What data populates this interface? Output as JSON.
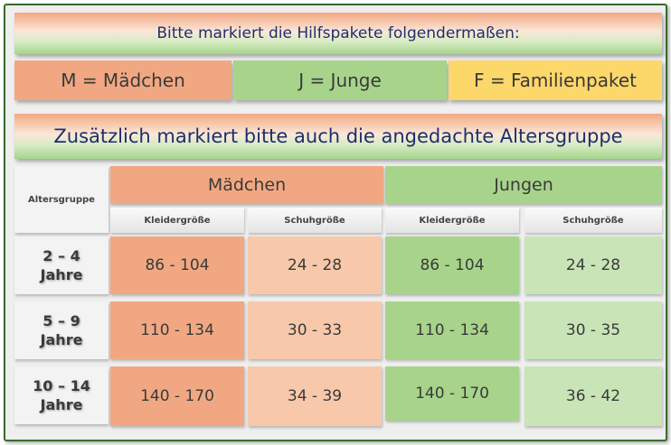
{
  "header": {
    "instruction": "Bitte markiert die Hilfspakete folgendermaßen:",
    "secondary": "Zusätzlich markiert bitte auch die angedachte Altersgruppe"
  },
  "legend": {
    "m": "M = Mädchen",
    "j": "J = Junge",
    "f": "F = Familienpaket"
  },
  "colors": {
    "girls": "#f1a882",
    "boys": "#a7d48a",
    "family": "#fcd769"
  },
  "table": {
    "age_header": "Altersgruppe",
    "groups": [
      "Mädchen",
      "Jungen"
    ],
    "subheaders": [
      "Kleidergröße",
      "Schuhgröße",
      "Kleidergröße",
      "Schuhgröße"
    ],
    "rows": [
      {
        "age_line1": "2 – 4",
        "age_line2": "Jahre",
        "values": [
          "86 - 104",
          "24 - 28",
          "86 - 104",
          "24 - 28"
        ]
      },
      {
        "age_line1": "5 – 9",
        "age_line2": "Jahre",
        "values": [
          "110 - 134",
          "30 - 33",
          "110 - 134",
          "30 - 35"
        ]
      },
      {
        "age_line1": "10 – 14",
        "age_line2": "Jahre",
        "values": [
          "140 - 170",
          "34 - 39",
          "140 - 170",
          "36 - 42"
        ]
      }
    ]
  }
}
